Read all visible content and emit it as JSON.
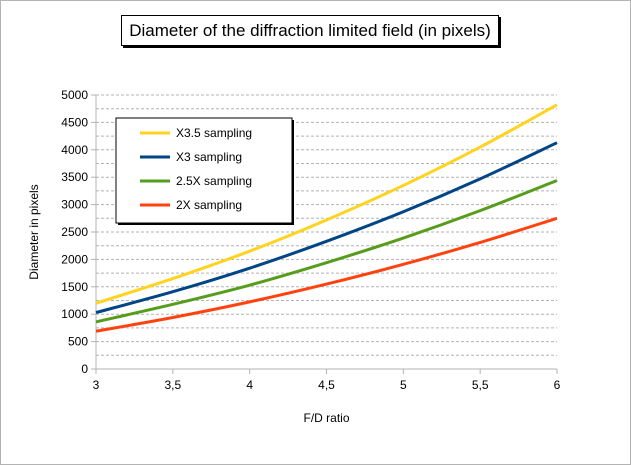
{
  "chart_data": {
    "type": "line",
    "title": "Diameter of the diffraction limited field (in pixels)",
    "xlabel": "F/D ratio",
    "ylabel": "Diameter in pixels",
    "x": [
      "3",
      "3,5",
      "4",
      "4,5",
      "5",
      "5,5",
      "6"
    ],
    "x_values": [
      3,
      3.5,
      4,
      4.5,
      5,
      5.5,
      6
    ],
    "yticks": [
      "0",
      "500",
      "1000",
      "1500",
      "2000",
      "2500",
      "3000",
      "3500",
      "4000",
      "4500",
      "5000"
    ],
    "ylim": [
      0,
      5000
    ],
    "grid": "horizontal dashed, major and minor",
    "legend_position": "top-left",
    "series": [
      {
        "name": "X3.5 sampling",
        "color": "#ffd320",
        "values": [
          1200,
          1650,
          2150,
          2720,
          3350,
          4050,
          4820
        ]
      },
      {
        "name": "X3 sampling",
        "color": "#004586",
        "values": [
          1030,
          1410,
          1840,
          2330,
          2870,
          3470,
          4130
        ]
      },
      {
        "name": "2.5X sampling",
        "color": "#579d1c",
        "values": [
          860,
          1180,
          1530,
          1940,
          2390,
          2890,
          3440
        ]
      },
      {
        "name": "2X sampling",
        "color": "#ff420e",
        "values": [
          690,
          940,
          1225,
          1550,
          1910,
          2310,
          2750
        ]
      }
    ]
  }
}
